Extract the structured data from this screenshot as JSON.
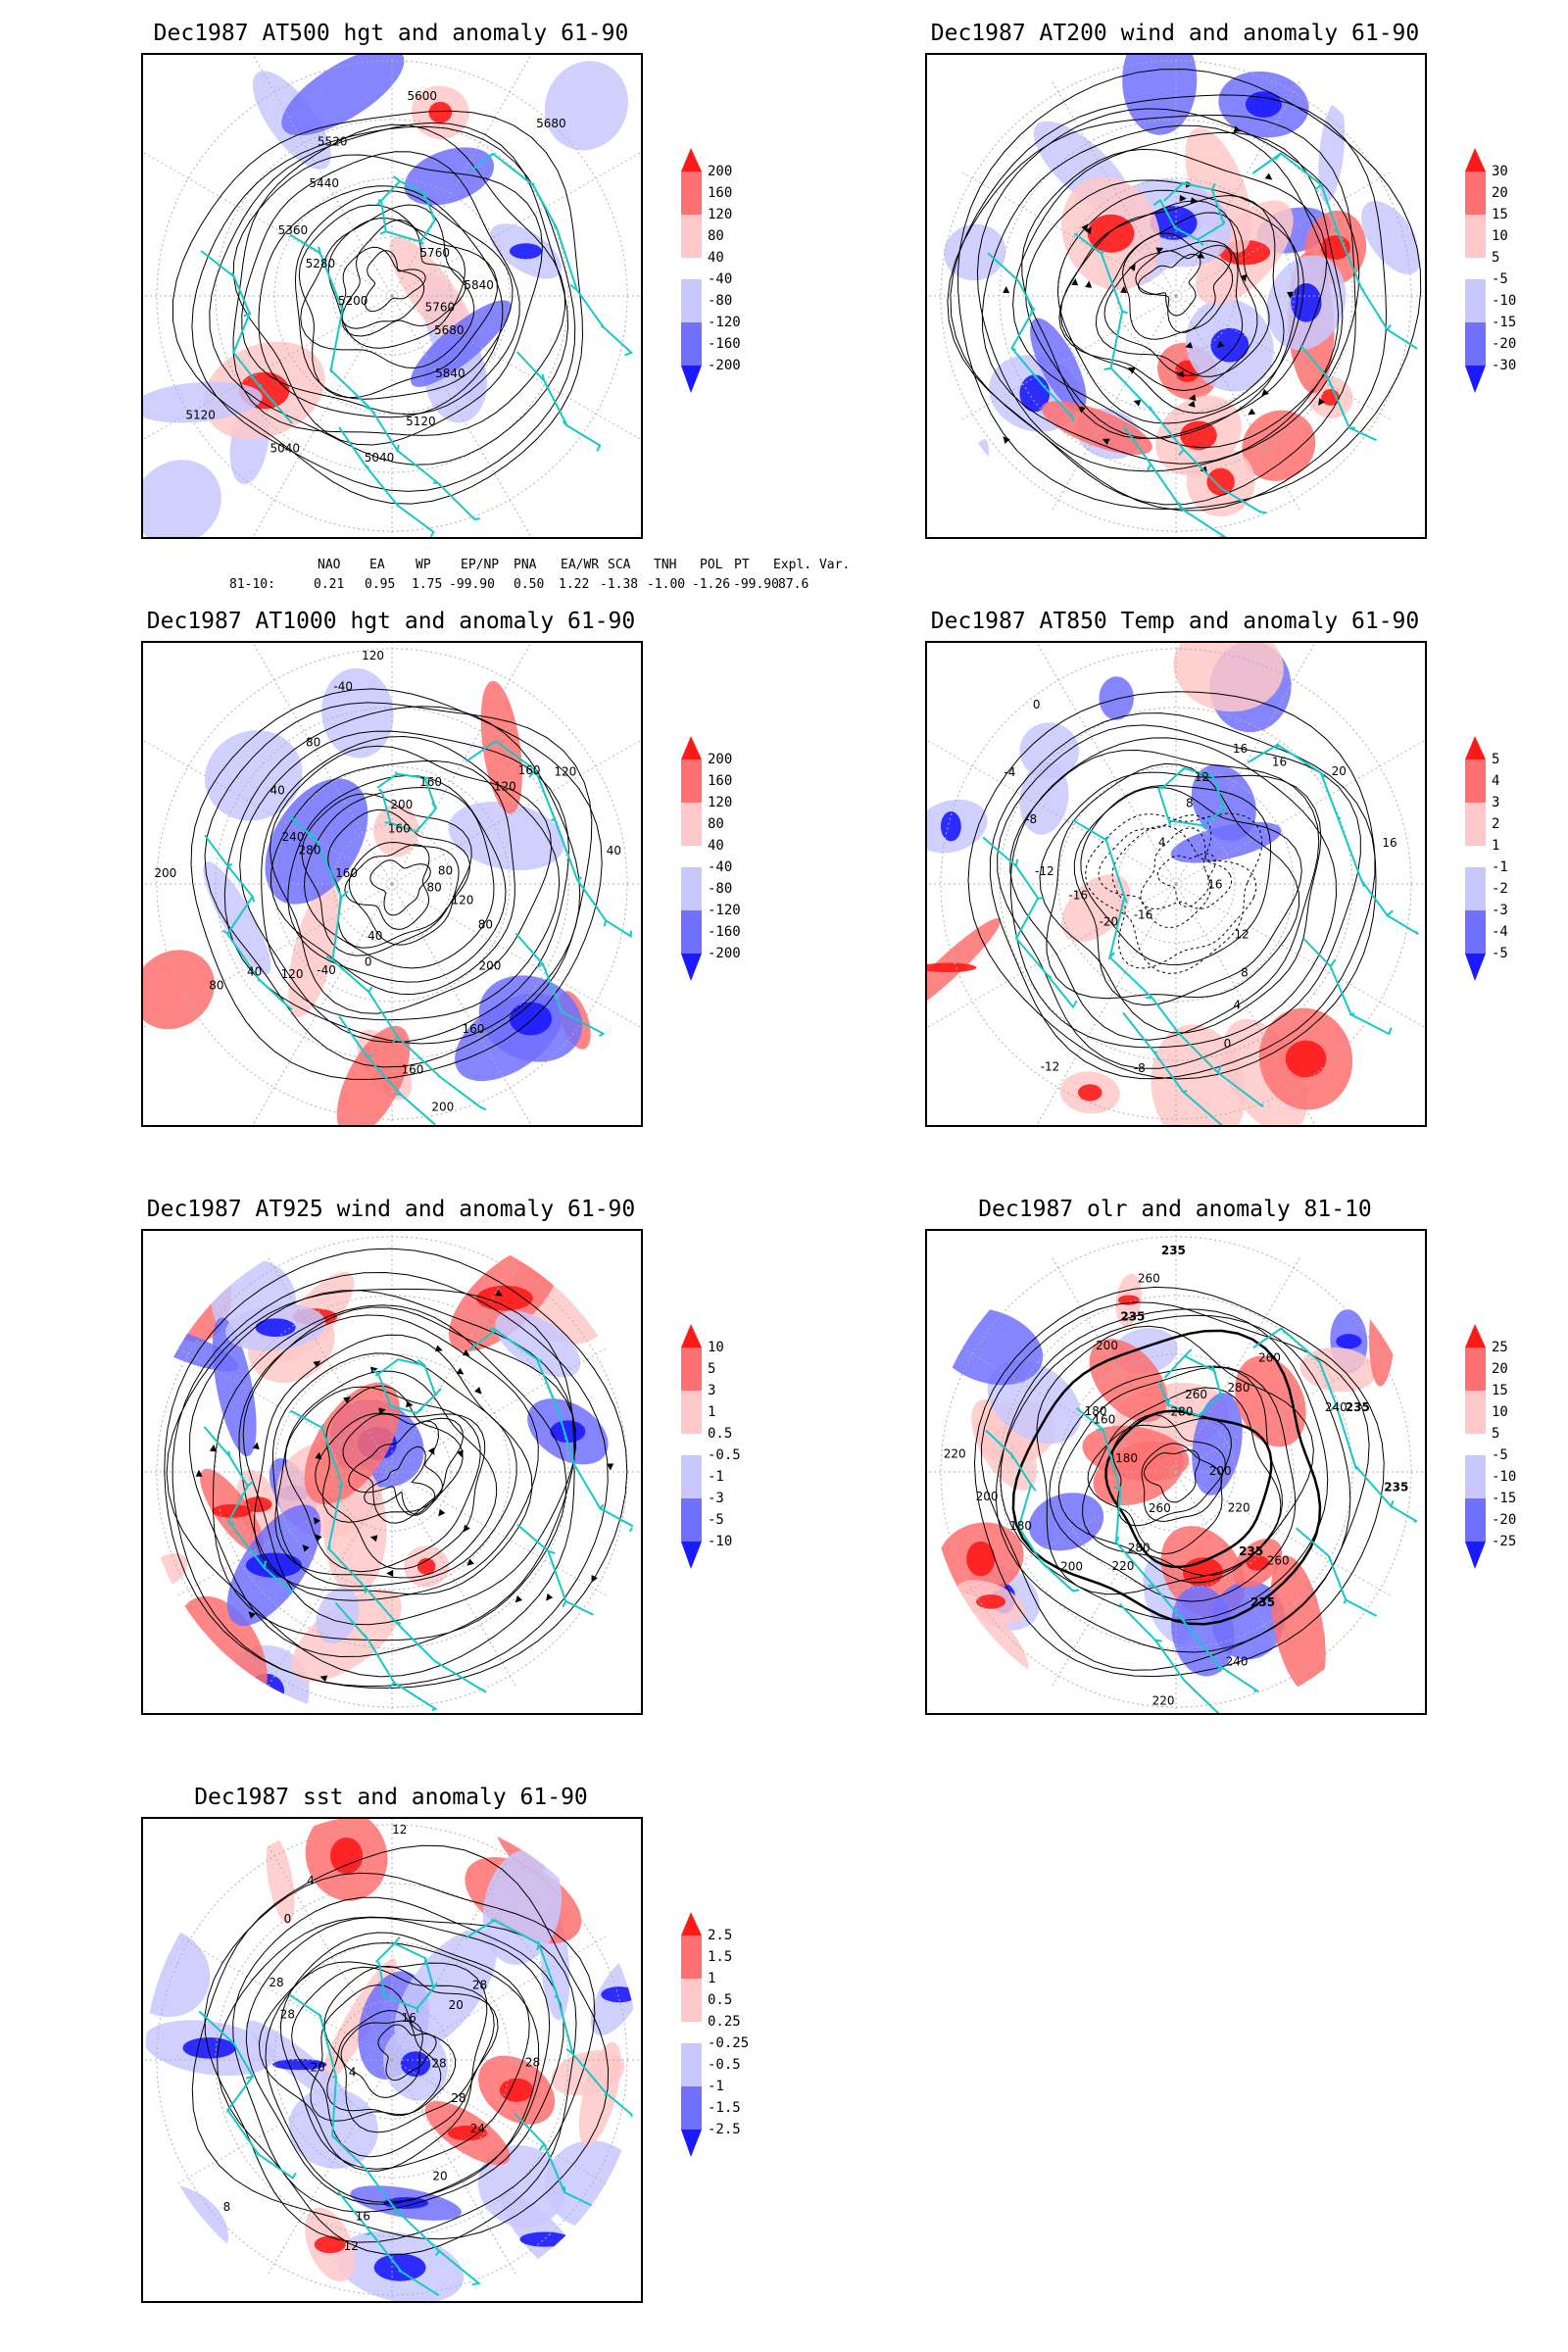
{
  "colors": {
    "coast": "#18c8c8",
    "red_strong": "#ff1a1a",
    "red_mid": "#ff7070",
    "red_light": "#ffc8c8",
    "blue_light": "#c8c8ff",
    "blue_mid": "#7070ff",
    "blue_strong": "#1a1aff",
    "contour": "#000000",
    "grid": "#b0b0b0"
  },
  "panels": [
    {
      "title": "Dec1987 AT500 hgt and anomaly 61-90",
      "colorbar": [
        "200",
        "160",
        "120",
        "80",
        "40",
        "-40",
        "-80",
        "-120",
        "-160",
        "-200"
      ],
      "contour_labels": [
        "5760",
        "5680",
        "5840",
        "5120",
        "5040",
        "5040",
        "5120",
        "5200",
        "5280",
        "5360",
        "5440",
        "5520",
        "5600",
        "5680",
        "5760",
        "5840"
      ],
      "style": "height"
    },
    {
      "title": "Dec1987 AT200 wind and anomaly 61-90",
      "colorbar": [
        "30",
        "20",
        "15",
        "10",
        "5",
        "-5",
        "-10",
        "-15",
        "-20",
        "-30"
      ],
      "contour_labels": [],
      "style": "wind"
    },
    {
      "title": "Dec1987 AT1000 hgt and anomaly 61-90",
      "colorbar": [
        "200",
        "160",
        "120",
        "80",
        "40",
        "-40",
        "-80",
        "-120",
        "-160",
        "-200"
      ],
      "contour_labels": [
        "80",
        "120",
        "80",
        "200",
        "160",
        "160",
        "200",
        "40",
        "0",
        "-40",
        "120",
        "40",
        "80",
        "200",
        "160",
        "280",
        "240",
        "40",
        "80",
        "-40",
        "120",
        "160",
        "200",
        "160",
        "120",
        "160",
        "120",
        "40",
        "80"
      ],
      "style": "height"
    },
    {
      "title": "Dec1987 AT850 Temp and anomaly 61-90",
      "colorbar": [
        "5",
        "4",
        "3",
        "2",
        "1",
        "-1",
        "-2",
        "-3",
        "-4",
        "-5"
      ],
      "contour_labels": [
        "16",
        "12",
        "8",
        "4",
        "0",
        "-8",
        "-12",
        "-16",
        "-20",
        "-16",
        "-12",
        "-8",
        "-4",
        "0",
        "4",
        "8",
        "12",
        "16",
        "16",
        "20",
        "16"
      ],
      "style": "temp"
    },
    {
      "title": "Dec1987 AT925 wind and anomaly 61-90",
      "colorbar": [
        "10",
        "5",
        "3",
        "1",
        "0.5",
        "-0.5",
        "-1",
        "-3",
        "-5",
        "-10"
      ],
      "contour_labels": [],
      "style": "wind"
    },
    {
      "title": "Dec1987 olr and anomaly 81-10",
      "colorbar": [
        "25",
        "20",
        "15",
        "10",
        "5",
        "-5",
        "-10",
        "-15",
        "-20",
        "-25"
      ],
      "contour_labels": [
        "200",
        "220",
        "235",
        "260",
        "235",
        "240",
        "220",
        "260",
        "280",
        "220",
        "200",
        "180",
        "200",
        "220",
        "180",
        "160",
        "180",
        "200",
        "235",
        "260",
        "235",
        "280",
        "260",
        "280",
        "260",
        "240",
        "235",
        "235"
      ],
      "style": "olr"
    },
    {
      "title": "Dec1987 sst and anomaly 61-90",
      "colorbar": [
        "2.5",
        "1.5",
        "1",
        "0.5",
        "0.25",
        "-0.25",
        "-0.5",
        "-1",
        "-1.5",
        "-2.5"
      ],
      "contour_labels": [
        "28",
        "28",
        "24",
        "20",
        "16",
        "12",
        "8",
        "4",
        "20",
        "28",
        "28",
        "0",
        "4",
        "12",
        "16",
        "20",
        "28",
        "28"
      ],
      "style": "sst"
    }
  ],
  "indices": {
    "headers": [
      "NAO",
      "EA",
      "WP",
      "EP/NP",
      "PNA",
      "EA/WR",
      "SCA",
      "TNH",
      "POL",
      "PT",
      "Expl. Var."
    ],
    "row_label": "81-10:",
    "values": [
      "0.21",
      "0.95",
      "1.75",
      "-99.90",
      "0.50",
      "1.22",
      "-1.38",
      "-1.00",
      "-1.26",
      "-99.90",
      "87.6"
    ]
  }
}
